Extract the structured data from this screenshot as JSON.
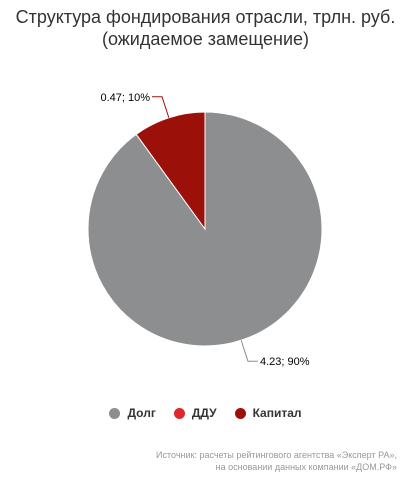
{
  "chart_data": {
    "type": "pie",
    "title": [
      "Структура фондирования отрасли, трлн. руб.",
      "(ожидаемое замещение)"
    ],
    "slices": [
      {
        "name": "Долг",
        "value": 4.23,
        "percent": 90,
        "label": "4.23; 90%",
        "color": "#8c8e8f"
      },
      {
        "name": "ДДУ",
        "value": 0,
        "percent": 0,
        "label": "",
        "color": "#e0272b"
      },
      {
        "name": "Капитал",
        "value": 0.47,
        "percent": 10,
        "label": "0.47; 10%",
        "color": "#9b1009"
      }
    ],
    "legend_position": "bottom"
  },
  "credits": [
    "Источник: расчеты рейтингового агентства «Эксперт РА»,",
    "на основании данных компании «ДОМ.РФ»"
  ]
}
